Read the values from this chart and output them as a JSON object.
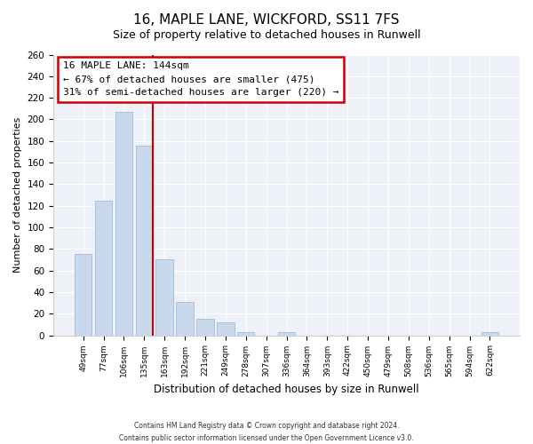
{
  "title": "16, MAPLE LANE, WICKFORD, SS11 7FS",
  "subtitle": "Size of property relative to detached houses in Runwell",
  "xlabel": "Distribution of detached houses by size in Runwell",
  "ylabel": "Number of detached properties",
  "bar_labels": [
    "49sqm",
    "77sqm",
    "106sqm",
    "135sqm",
    "163sqm",
    "192sqm",
    "221sqm",
    "249sqm",
    "278sqm",
    "307sqm",
    "336sqm",
    "364sqm",
    "393sqm",
    "422sqm",
    "450sqm",
    "479sqm",
    "508sqm",
    "536sqm",
    "565sqm",
    "594sqm",
    "622sqm"
  ],
  "bar_values": [
    75,
    125,
    207,
    176,
    70,
    31,
    15,
    12,
    3,
    0,
    3,
    0,
    0,
    0,
    0,
    0,
    0,
    0,
    0,
    0,
    3
  ],
  "bar_color": "#c9d9ed",
  "bar_edgecolor": "#a8c0de",
  "ylim": [
    0,
    260
  ],
  "yticks": [
    0,
    20,
    40,
    60,
    80,
    100,
    120,
    140,
    160,
    180,
    200,
    220,
    240,
    260
  ],
  "vline_color": "#cc0000",
  "annotation_title": "16 MAPLE LANE: 144sqm",
  "annotation_line1": "← 67% of detached houses are smaller (475)",
  "annotation_line2": "31% of semi-detached houses are larger (220) →",
  "annotation_box_edgecolor": "#cc0000",
  "footer_line1": "Contains HM Land Registry data © Crown copyright and database right 2024.",
  "footer_line2": "Contains public sector information licensed under the Open Government Licence v3.0.",
  "background_color": "#ffffff",
  "plot_background": "#eef2f8",
  "title_fontsize": 11,
  "subtitle_fontsize": 9.5
}
